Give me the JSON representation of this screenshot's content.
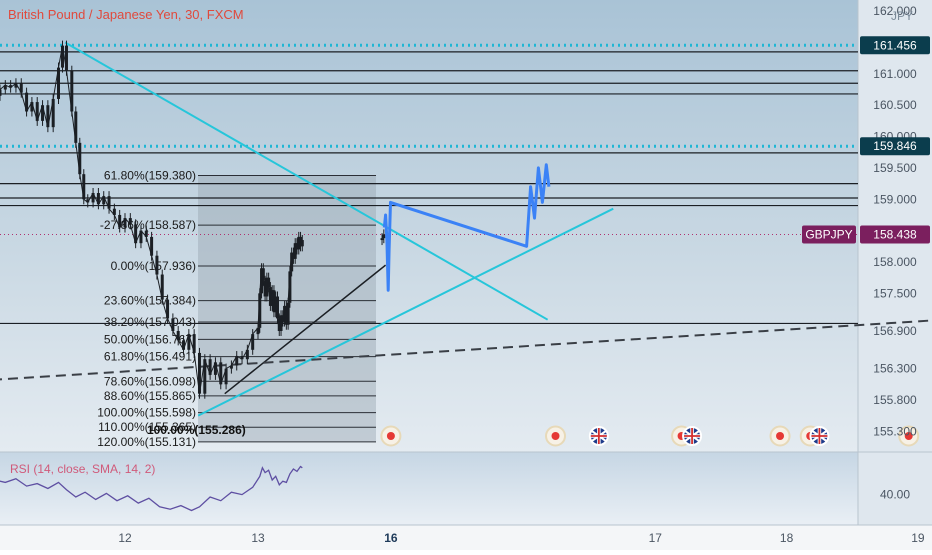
{
  "header": {
    "symbol_title": "British Pound / Japanese Yen, 30, FXCM"
  },
  "price_axis": {
    "currency": "JPY",
    "ticks": [
      "162.000",
      "161.000",
      "160.500",
      "160.000",
      "159.500",
      "159.000",
      "158.000",
      "157.500",
      "156.900",
      "156.300",
      "155.800",
      "155.300"
    ],
    "tick_values": [
      162.0,
      161.0,
      160.5,
      160.0,
      159.5,
      159.0,
      158.0,
      157.5,
      156.9,
      156.3,
      155.8,
      155.3
    ],
    "badges": [
      {
        "text": "161.456",
        "value": 161.456,
        "style": "level"
      },
      {
        "text": "159.846",
        "value": 159.846,
        "style": "level"
      },
      {
        "text": "158.438",
        "value": 158.438,
        "style": "current"
      }
    ],
    "current_label": "GBPJPY",
    "ylim": [
      155.05,
      162.05
    ]
  },
  "time_axis": {
    "labels": [
      {
        "text": "12",
        "day": 12
      },
      {
        "text": "13",
        "day": 13
      },
      {
        "text": "16",
        "day": 16,
        "bold": true
      },
      {
        "text": "17",
        "day": 17
      },
      {
        "text": "18",
        "day": 18
      },
      {
        "text": "19",
        "day": 19
      }
    ]
  },
  "horizontal_levels": [
    {
      "value": 161.456,
      "style": "dotted-teal"
    },
    {
      "value": 161.35,
      "style": "solid"
    },
    {
      "value": 161.05,
      "style": "solid"
    },
    {
      "value": 160.85,
      "style": "solid"
    },
    {
      "value": 160.68,
      "style": "solid"
    },
    {
      "value": 159.846,
      "style": "dotted-teal"
    },
    {
      "value": 159.74,
      "style": "solid"
    },
    {
      "value": 159.25,
      "style": "solid"
    },
    {
      "value": 159.02,
      "style": "solid"
    },
    {
      "value": 158.9,
      "style": "solid"
    },
    {
      "value": 157.02,
      "style": "solid"
    }
  ],
  "current_price_line": 158.438,
  "fib_levels": [
    {
      "label": "61.80%(159.380)",
      "value": 159.38
    },
    {
      "label": "-27.86%(158.587)",
      "value": 158.587
    },
    {
      "label": "0.00%(157.936)",
      "value": 157.936
    },
    {
      "label": "23.60%(157.384)",
      "value": 157.384
    },
    {
      "label": "38.20%(157.043)",
      "value": 157.043
    },
    {
      "label": "50.00%(156.767)",
      "value": 156.767
    },
    {
      "label": "61.80%(156.491)",
      "value": 156.491
    },
    {
      "label": "78.60%(156.098)",
      "value": 156.098
    },
    {
      "label": "88.60%(155.865)",
      "value": 155.865
    },
    {
      "label": "100.00%(155.598)",
      "value": 155.598
    },
    {
      "label": "110.00%(155.365)",
      "value": 155.365
    },
    {
      "label": "120.00%(155.131)",
      "value": 155.131
    }
  ],
  "fib_overlap_label": "100.00%(155.286)",
  "trendlines": [
    {
      "name": "descending-trendline",
      "style": "teal",
      "from": {
        "day": 11.55,
        "price": 161.5
      },
      "to": {
        "day": 16.18,
        "price": 157.08
      }
    },
    {
      "name": "rising-channel-trendline",
      "style": "teal",
      "from": {
        "day": 12.55,
        "price": 155.55
      },
      "to": {
        "day": 16.68,
        "price": 158.85
      }
    },
    {
      "name": "inner-wedge-line",
      "style": "dark",
      "from": {
        "day": 12.75,
        "price": 155.9
      },
      "to": {
        "day": 15.88,
        "price": 157.95
      }
    },
    {
      "name": "dashed-support-line",
      "style": "dashed",
      "from": {
        "day": 11.0,
        "price": 156.12
      },
      "to": {
        "day": 19.5,
        "price": 157.12
      }
    }
  ],
  "projection_path": [
    {
      "day": 15.85,
      "price": 158.55
    },
    {
      "day": 15.88,
      "price": 158.75
    },
    {
      "day": 15.91,
      "price": 158.35
    },
    {
      "day": 15.94,
      "price": 157.55
    },
    {
      "day": 15.96,
      "price": 158.2
    },
    {
      "day": 15.99,
      "price": 158.95
    },
    {
      "day": 16.02,
      "price": 158.25
    },
    {
      "day": 16.05,
      "price": 159.2
    },
    {
      "day": 16.08,
      "price": 158.7
    },
    {
      "day": 16.11,
      "price": 159.5
    },
    {
      "day": 16.14,
      "price": 158.95
    },
    {
      "day": 16.17,
      "price": 159.55
    },
    {
      "day": 16.19,
      "price": 159.2
    }
  ],
  "price_series": [
    {
      "day": 11.02,
      "price": 160.65
    },
    {
      "day": 11.06,
      "price": 160.75
    },
    {
      "day": 11.1,
      "price": 160.82
    },
    {
      "day": 11.14,
      "price": 160.78
    },
    {
      "day": 11.18,
      "price": 160.85
    },
    {
      "day": 11.22,
      "price": 160.7
    },
    {
      "day": 11.26,
      "price": 160.4
    },
    {
      "day": 11.3,
      "price": 160.55
    },
    {
      "day": 11.34,
      "price": 160.25
    },
    {
      "day": 11.38,
      "price": 160.5
    },
    {
      "day": 11.42,
      "price": 160.15
    },
    {
      "day": 11.46,
      "price": 160.6
    },
    {
      "day": 11.5,
      "price": 161.1
    },
    {
      "day": 11.53,
      "price": 161.45
    },
    {
      "day": 11.56,
      "price": 161.05
    },
    {
      "day": 11.6,
      "price": 160.4
    },
    {
      "day": 11.63,
      "price": 159.9
    },
    {
      "day": 11.66,
      "price": 159.4
    },
    {
      "day": 11.69,
      "price": 159.0
    },
    {
      "day": 11.72,
      "price": 158.95
    },
    {
      "day": 11.76,
      "price": 159.1
    },
    {
      "day": 11.8,
      "price": 158.92
    },
    {
      "day": 11.84,
      "price": 159.05
    },
    {
      "day": 11.88,
      "price": 158.85
    },
    {
      "day": 11.92,
      "price": 158.75
    },
    {
      "day": 11.96,
      "price": 158.55
    },
    {
      "day": 12.0,
      "price": 158.7
    },
    {
      "day": 12.04,
      "price": 158.6
    },
    {
      "day": 12.08,
      "price": 158.3
    },
    {
      "day": 12.12,
      "price": 158.5
    },
    {
      "day": 12.16,
      "price": 158.4
    },
    {
      "day": 12.2,
      "price": 158.1
    },
    {
      "day": 12.24,
      "price": 157.8
    },
    {
      "day": 12.28,
      "price": 157.4
    },
    {
      "day": 12.32,
      "price": 157.1
    },
    {
      "day": 12.36,
      "price": 156.9
    },
    {
      "day": 12.4,
      "price": 156.75
    },
    {
      "day": 12.44,
      "price": 156.6
    },
    {
      "day": 12.48,
      "price": 156.85
    },
    {
      "day": 12.52,
      "price": 156.55
    },
    {
      "day": 12.56,
      "price": 155.9
    },
    {
      "day": 12.6,
      "price": 156.45
    },
    {
      "day": 12.64,
      "price": 156.2
    },
    {
      "day": 12.68,
      "price": 156.4
    },
    {
      "day": 12.72,
      "price": 156.05
    },
    {
      "day": 12.76,
      "price": 156.3
    },
    {
      "day": 12.8,
      "price": 156.35
    },
    {
      "day": 12.84,
      "price": 156.5
    },
    {
      "day": 12.88,
      "price": 156.45
    },
    {
      "day": 12.92,
      "price": 156.6
    },
    {
      "day": 12.96,
      "price": 156.85
    },
    {
      "day": 13.0,
      "price": 156.95
    },
    {
      "day": 13.04,
      "price": 157.5
    },
    {
      "day": 13.08,
      "price": 157.9
    },
    {
      "day": 13.12,
      "price": 157.7
    },
    {
      "day": 13.16,
      "price": 157.45
    },
    {
      "day": 13.2,
      "price": 157.75
    },
    {
      "day": 13.24,
      "price": 157.6
    },
    {
      "day": 13.28,
      "price": 157.3
    },
    {
      "day": 13.32,
      "price": 157.55
    },
    {
      "day": 13.36,
      "price": 157.2
    },
    {
      "day": 13.4,
      "price": 157.45
    },
    {
      "day": 13.44,
      "price": 157.1
    },
    {
      "day": 13.48,
      "price": 156.9
    },
    {
      "day": 13.52,
      "price": 157.15
    },
    {
      "day": 13.56,
      "price": 157.05
    },
    {
      "day": 13.6,
      "price": 157.3
    },
    {
      "day": 13.64,
      "price": 157.0
    },
    {
      "day": 13.68,
      "price": 157.35
    },
    {
      "day": 13.72,
      "price": 157.85
    },
    {
      "day": 13.76,
      "price": 158.15
    },
    {
      "day": 13.8,
      "price": 158.05
    },
    {
      "day": 13.84,
      "price": 158.3
    },
    {
      "day": 13.88,
      "price": 158.2
    },
    {
      "day": 13.92,
      "price": 158.4
    },
    {
      "day": 13.96,
      "price": 158.25
    },
    {
      "day": 14.0,
      "price": 158.35
    },
    {
      "day": 15.8,
      "price": 158.38
    },
    {
      "day": 15.84,
      "price": 158.44
    }
  ],
  "rsi": {
    "label": "RSI (14, close, SMA, 14, 2)",
    "axis_tick": "40.00",
    "tick_value": 40,
    "ylim": [
      20,
      70
    ],
    "values": [
      {
        "day": 11.02,
        "v": 52
      },
      {
        "day": 11.1,
        "v": 50
      },
      {
        "day": 11.18,
        "v": 53
      },
      {
        "day": 11.26,
        "v": 47
      },
      {
        "day": 11.34,
        "v": 49
      },
      {
        "day": 11.42,
        "v": 45
      },
      {
        "day": 11.5,
        "v": 50
      },
      {
        "day": 11.56,
        "v": 44
      },
      {
        "day": 11.63,
        "v": 38
      },
      {
        "day": 11.7,
        "v": 42
      },
      {
        "day": 11.78,
        "v": 36
      },
      {
        "day": 11.86,
        "v": 41
      },
      {
        "day": 11.94,
        "v": 35
      },
      {
        "day": 12.02,
        "v": 39
      },
      {
        "day": 12.1,
        "v": 33
      },
      {
        "day": 12.18,
        "v": 37
      },
      {
        "day": 12.26,
        "v": 30
      },
      {
        "day": 12.34,
        "v": 28
      },
      {
        "day": 12.42,
        "v": 31
      },
      {
        "day": 12.5,
        "v": 27
      },
      {
        "day": 12.56,
        "v": 30
      },
      {
        "day": 12.64,
        "v": 38
      },
      {
        "day": 12.72,
        "v": 35
      },
      {
        "day": 12.8,
        "v": 42
      },
      {
        "day": 12.88,
        "v": 40
      },
      {
        "day": 12.96,
        "v": 46
      },
      {
        "day": 13.04,
        "v": 55
      },
      {
        "day": 13.1,
        "v": 62
      },
      {
        "day": 13.16,
        "v": 58
      },
      {
        "day": 13.24,
        "v": 60
      },
      {
        "day": 13.32,
        "v": 52
      },
      {
        "day": 13.4,
        "v": 55
      },
      {
        "day": 13.48,
        "v": 48
      },
      {
        "day": 13.56,
        "v": 51
      },
      {
        "day": 13.64,
        "v": 50
      },
      {
        "day": 13.72,
        "v": 57
      },
      {
        "day": 13.8,
        "v": 61
      },
      {
        "day": 13.88,
        "v": 59
      },
      {
        "day": 13.96,
        "v": 63
      },
      {
        "day": 14.0,
        "v": 62
      },
      {
        "day": 15.8,
        "v": 64
      }
    ]
  },
  "events": [
    {
      "day": 15.97,
      "flag": "uk",
      "visible": false
    },
    {
      "day": 16.0,
      "flag": "dot"
    },
    {
      "day": 16.24,
      "flag": "dot"
    },
    {
      "day": 16.57,
      "flag": "uk"
    },
    {
      "day": 17.2,
      "flag": "dot"
    },
    {
      "day": 17.28,
      "flag": "uk"
    },
    {
      "day": 17.95,
      "flag": "dot"
    },
    {
      "day": 18.18,
      "flag": "dot"
    },
    {
      "day": 18.25,
      "flag": "uk"
    },
    {
      "day": 18.93,
      "flag": "dot"
    },
    {
      "day": 19.4,
      "flag": "uk"
    }
  ],
  "colors": {
    "accent_teal": "#26c6da",
    "level_badge": "#0b3d4d",
    "current_badge": "#7b1f5e",
    "title_red": "#e0493c",
    "projection_blue": "#3b82f6",
    "event_red": "#e53935"
  }
}
